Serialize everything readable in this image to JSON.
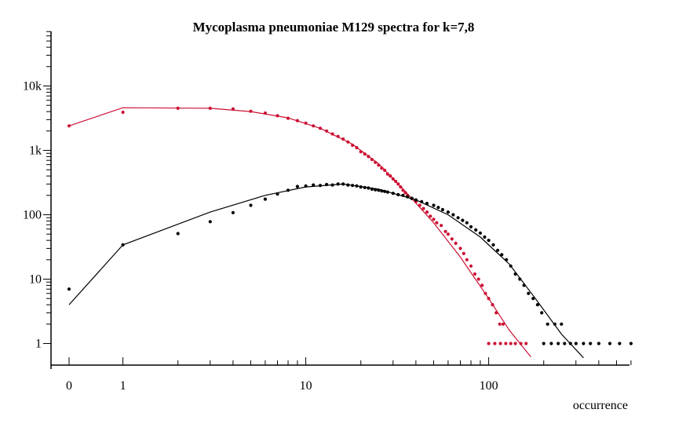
{
  "chart_data": {
    "type": "scatter",
    "title": "Mycoplasma pneumoniae M129 spectra for k=7,8",
    "xlabel": "occurrence",
    "ylabel": "",
    "x_scale": "log1p",
    "y_scale": "log",
    "xlim": [
      0,
      610
    ],
    "ylim": [
      0.5,
      65000
    ],
    "x_ticks": [
      {
        "value": 0,
        "label": "0"
      },
      {
        "value": 1,
        "label": "1"
      },
      {
        "value": 10,
        "label": "10"
      },
      {
        "value": 100,
        "label": "100"
      }
    ],
    "y_ticks": [
      {
        "value": 1,
        "label": "1"
      },
      {
        "value": 10,
        "label": "10"
      },
      {
        "value": 100,
        "label": "100"
      },
      {
        "value": 1000,
        "label": "1k"
      },
      {
        "value": 10000,
        "label": "10k"
      }
    ],
    "grid": false,
    "legend": "none",
    "series": [
      {
        "color": "#cc1133",
        "points": [
          [
            0,
            2400
          ],
          [
            1,
            3900
          ],
          [
            2,
            4500
          ],
          [
            3,
            4500
          ],
          [
            4,
            4400
          ],
          [
            5,
            4050
          ],
          [
            6,
            3800
          ],
          [
            7,
            3450
          ],
          [
            8,
            3150
          ],
          [
            9,
            2900
          ],
          [
            10,
            2650
          ],
          [
            11,
            2400
          ],
          [
            12,
            2200
          ],
          [
            13,
            2000
          ],
          [
            14,
            1800
          ],
          [
            15,
            1650
          ],
          [
            16,
            1500
          ],
          [
            17,
            1350
          ],
          [
            18,
            1200
          ],
          [
            19,
            1100
          ],
          [
            20,
            950
          ],
          [
            21,
            880
          ],
          [
            22,
            800
          ],
          [
            23,
            720
          ],
          [
            24,
            650
          ],
          [
            25,
            590
          ],
          [
            26,
            530
          ],
          [
            27,
            490
          ],
          [
            28,
            430
          ],
          [
            29,
            400
          ],
          [
            30,
            360
          ],
          [
            31,
            330
          ],
          [
            32,
            300
          ],
          [
            33,
            270
          ],
          [
            34,
            240
          ],
          [
            35,
            220
          ],
          [
            36,
            200
          ],
          [
            38,
            180
          ],
          [
            40,
            160
          ],
          [
            42,
            140
          ],
          [
            44,
            125
          ],
          [
            46,
            110
          ],
          [
            48,
            95
          ],
          [
            50,
            85
          ],
          [
            52,
            75
          ],
          [
            55,
            68
          ],
          [
            58,
            55
          ],
          [
            60,
            50
          ],
          [
            63,
            42
          ],
          [
            66,
            36
          ],
          [
            70,
            30
          ],
          [
            73,
            25
          ],
          [
            76,
            20
          ],
          [
            80,
            16
          ],
          [
            84,
            12
          ],
          [
            88,
            10
          ],
          [
            92,
            8
          ],
          [
            96,
            6
          ],
          [
            100,
            5
          ],
          [
            105,
            4
          ],
          [
            110,
            3
          ],
          [
            115,
            2
          ],
          [
            120,
            2
          ],
          [
            100,
            1
          ],
          [
            108,
            1
          ],
          [
            116,
            1
          ],
          [
            124,
            1
          ],
          [
            132,
            1
          ],
          [
            140,
            1
          ],
          [
            150,
            1
          ],
          [
            160,
            1
          ]
        ],
        "fit": [
          [
            0,
            2400
          ],
          [
            1,
            4600
          ],
          [
            3,
            4500
          ],
          [
            5,
            4000
          ],
          [
            8,
            3200
          ],
          [
            12,
            2200
          ],
          [
            18,
            1250
          ],
          [
            25,
            620
          ],
          [
            35,
            230
          ],
          [
            50,
            75
          ],
          [
            70,
            22
          ],
          [
            100,
            5
          ],
          [
            130,
            1.6
          ],
          [
            170,
            0.62
          ]
        ]
      },
      {
        "color": "#000000",
        "points": [
          [
            0,
            7
          ],
          [
            1,
            34
          ],
          [
            2,
            51
          ],
          [
            3,
            78
          ],
          [
            4,
            108
          ],
          [
            5,
            140
          ],
          [
            6,
            175
          ],
          [
            7,
            210
          ],
          [
            8,
            240
          ],
          [
            9,
            275
          ],
          [
            10,
            280
          ],
          [
            11,
            290
          ],
          [
            12,
            285
          ],
          [
            13,
            295
          ],
          [
            14,
            290
          ],
          [
            15,
            300
          ],
          [
            16,
            300
          ],
          [
            17,
            290
          ],
          [
            18,
            285
          ],
          [
            19,
            280
          ],
          [
            20,
            270
          ],
          [
            21,
            265
          ],
          [
            22,
            260
          ],
          [
            23,
            250
          ],
          [
            24,
            245
          ],
          [
            25,
            240
          ],
          [
            26,
            235
          ],
          [
            27,
            230
          ],
          [
            28,
            225
          ],
          [
            30,
            215
          ],
          [
            32,
            205
          ],
          [
            34,
            200
          ],
          [
            36,
            190
          ],
          [
            38,
            180
          ],
          [
            40,
            170
          ],
          [
            43,
            160
          ],
          [
            46,
            150
          ],
          [
            50,
            140
          ],
          [
            53,
            130
          ],
          [
            56,
            120
          ],
          [
            60,
            110
          ],
          [
            64,
            100
          ],
          [
            68,
            90
          ],
          [
            72,
            82
          ],
          [
            76,
            75
          ],
          [
            80,
            65
          ],
          [
            85,
            58
          ],
          [
            90,
            52
          ],
          [
            95,
            45
          ],
          [
            100,
            40
          ],
          [
            106,
            34
          ],
          [
            112,
            28
          ],
          [
            118,
            24
          ],
          [
            125,
            20
          ],
          [
            132,
            16
          ],
          [
            140,
            12
          ],
          [
            148,
            10
          ],
          [
            156,
            8
          ],
          [
            165,
            6
          ],
          [
            175,
            5
          ],
          [
            185,
            4
          ],
          [
            195,
            3
          ],
          [
            210,
            2
          ],
          [
            230,
            2
          ],
          [
            250,
            2
          ],
          [
            200,
            1
          ],
          [
            220,
            1
          ],
          [
            240,
            1
          ],
          [
            260,
            1
          ],
          [
            280,
            1
          ],
          [
            300,
            1
          ],
          [
            330,
            1
          ],
          [
            360,
            1
          ],
          [
            400,
            1
          ],
          [
            460,
            1
          ],
          [
            520,
            1
          ],
          [
            600,
            1
          ]
        ],
        "fit": [
          [
            0,
            4
          ],
          [
            1,
            34
          ],
          [
            3,
            110
          ],
          [
            6,
            200
          ],
          [
            10,
            270
          ],
          [
            16,
            300
          ],
          [
            25,
            250
          ],
          [
            40,
            170
          ],
          [
            60,
            100
          ],
          [
            90,
            45
          ],
          [
            130,
            17
          ],
          [
            180,
            5
          ],
          [
            250,
            1.4
          ],
          [
            330,
            0.6
          ]
        ]
      }
    ]
  }
}
